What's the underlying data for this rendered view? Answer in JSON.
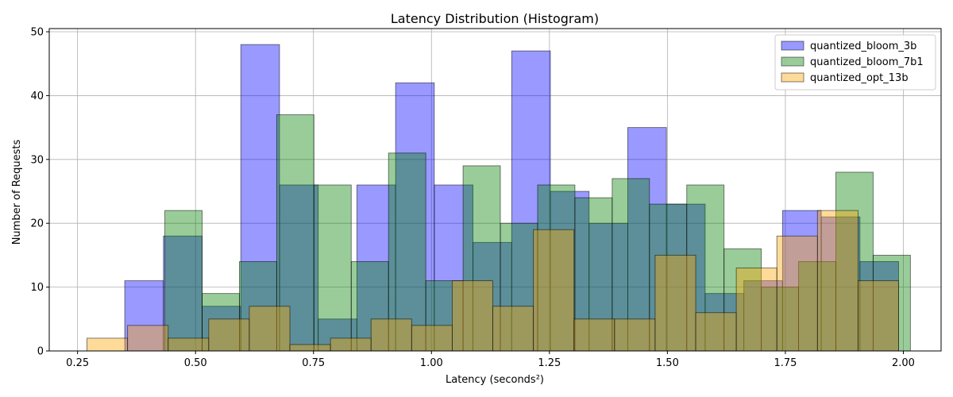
{
  "chart_data": {
    "type": "bar",
    "subtype": "histogram",
    "title": "Latency Distribution (Histogram)",
    "xlabel": "Latency (seconds²)",
    "ylabel": "Number of Requests",
    "xlim": [
      0.19,
      2.08
    ],
    "ylim": [
      0,
      50.5
    ],
    "xticks": [
      0.25,
      0.5,
      0.75,
      1.0,
      1.25,
      1.5,
      1.75,
      2.0
    ],
    "xtick_labels": [
      "0.25",
      "0.50",
      "0.75",
      "1.00",
      "1.25",
      "1.50",
      "1.75",
      "2.00"
    ],
    "yticks": [
      0,
      10,
      20,
      30,
      40,
      50
    ],
    "ytick_labels": [
      "0",
      "10",
      "20",
      "30",
      "40",
      "50"
    ],
    "grid": true,
    "legend_position": "top-right",
    "series": [
      {
        "name": "quantized_bloom_3b",
        "color": "#0000ff",
        "alpha": 0.4,
        "bins": [
          [
            0.35,
            0.432,
            11
          ],
          [
            0.432,
            0.514,
            18
          ],
          [
            0.514,
            0.596,
            7
          ],
          [
            0.596,
            0.678,
            48
          ],
          [
            0.678,
            0.76,
            26
          ],
          [
            0.76,
            0.842,
            5
          ],
          [
            0.842,
            0.924,
            26
          ],
          [
            0.924,
            1.006,
            42
          ],
          [
            1.006,
            1.088,
            26
          ],
          [
            1.088,
            1.17,
            17
          ],
          [
            1.17,
            1.252,
            47
          ],
          [
            1.252,
            1.334,
            25
          ],
          [
            1.334,
            1.416,
            20
          ],
          [
            1.416,
            1.498,
            35
          ],
          [
            1.498,
            1.58,
            23
          ],
          [
            1.58,
            1.662,
            9
          ],
          [
            1.662,
            1.744,
            11
          ],
          [
            1.744,
            1.826,
            22
          ],
          [
            1.826,
            1.908,
            21
          ],
          [
            1.908,
            1.99,
            14
          ]
        ]
      },
      {
        "name": "quantized_bloom_7b1",
        "color": "#008000",
        "alpha": 0.4,
        "bins": [
          [
            0.435,
            0.514,
            22
          ],
          [
            0.514,
            0.593,
            9
          ],
          [
            0.593,
            0.672,
            14
          ],
          [
            0.672,
            0.751,
            37
          ],
          [
            0.751,
            0.83,
            26
          ],
          [
            0.83,
            0.909,
            14
          ],
          [
            0.909,
            0.988,
            31
          ],
          [
            0.988,
            1.067,
            11
          ],
          [
            1.067,
            1.146,
            29
          ],
          [
            1.146,
            1.225,
            20
          ],
          [
            1.225,
            1.304,
            26
          ],
          [
            1.304,
            1.383,
            24
          ],
          [
            1.383,
            1.462,
            27
          ],
          [
            1.462,
            1.541,
            23
          ],
          [
            1.541,
            1.62,
            26
          ],
          [
            1.62,
            1.699,
            16
          ],
          [
            1.699,
            1.778,
            10
          ],
          [
            1.778,
            1.857,
            14
          ],
          [
            1.857,
            1.936,
            28
          ],
          [
            1.936,
            2.015,
            15
          ]
        ]
      },
      {
        "name": "quantized_opt_13b",
        "color": "#ffa500",
        "alpha": 0.4,
        "bins": [
          [
            0.27,
            0.356,
            2
          ],
          [
            0.356,
            0.442,
            4
          ],
          [
            0.442,
            0.528,
            2
          ],
          [
            0.528,
            0.614,
            5
          ],
          [
            0.614,
            0.7,
            7
          ],
          [
            0.7,
            0.786,
            1
          ],
          [
            0.786,
            0.872,
            2
          ],
          [
            0.872,
            0.958,
            5
          ],
          [
            0.958,
            1.044,
            4
          ],
          [
            1.044,
            1.13,
            11
          ],
          [
            1.13,
            1.216,
            7
          ],
          [
            1.216,
            1.302,
            19
          ],
          [
            1.302,
            1.388,
            5
          ],
          [
            1.388,
            1.474,
            5
          ],
          [
            1.474,
            1.56,
            15
          ],
          [
            1.56,
            1.646,
            6
          ],
          [
            1.646,
            1.732,
            13
          ],
          [
            1.732,
            1.818,
            18
          ],
          [
            1.818,
            1.904,
            22
          ],
          [
            1.904,
            1.99,
            11
          ]
        ]
      }
    ]
  }
}
